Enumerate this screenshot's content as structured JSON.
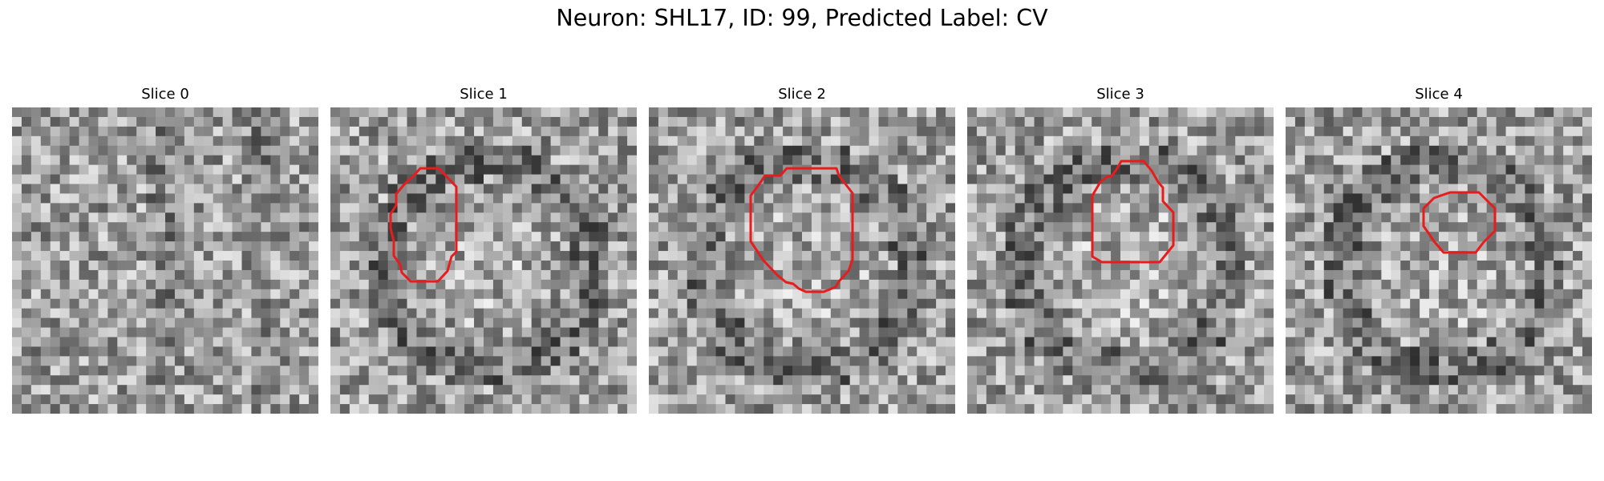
{
  "figure": {
    "title": "Neuron: SHL17, ID: 99, Predicted Label: CV"
  },
  "slices": [
    {
      "label": "Slice 0",
      "has_contour": false,
      "seed": 11
    },
    {
      "label": "Slice 1",
      "has_contour": true,
      "seed": 23
    },
    {
      "label": "Slice 2",
      "has_contour": true,
      "seed": 37
    },
    {
      "label": "Slice 3",
      "has_contour": true,
      "seed": 51
    },
    {
      "label": "Slice 4",
      "has_contour": true,
      "seed": 67
    }
  ],
  "colors": {
    "contour": "#e81c1c",
    "background": "#ffffff"
  },
  "image": {
    "grid_size": 32,
    "colormap": "gray"
  }
}
